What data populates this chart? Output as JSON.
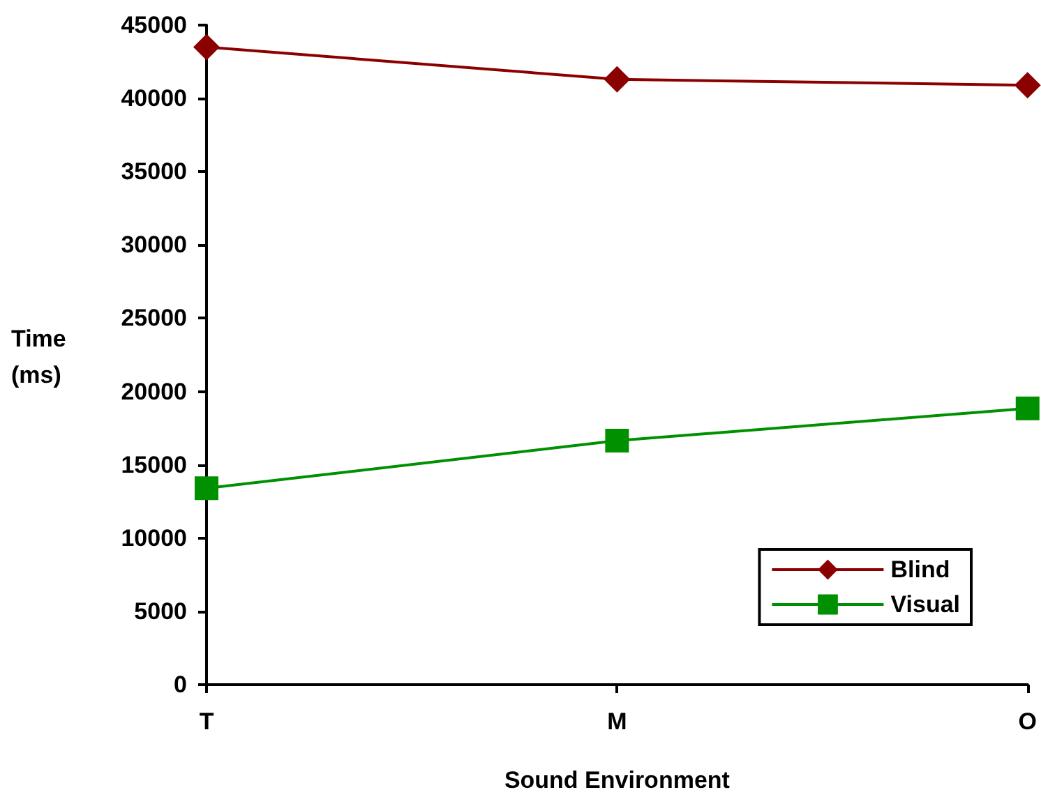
{
  "chart_data": {
    "type": "line",
    "xlabel": "Sound Environment",
    "ylabel": "Time (ms)",
    "categories": [
      "T",
      "M",
      "O"
    ],
    "series": [
      {
        "name": "Blind",
        "color": "#8b0000",
        "marker": "diamond",
        "values": [
          43500,
          41300,
          40900
        ]
      },
      {
        "name": "Visual",
        "color": "#009000",
        "marker": "square",
        "values": [
          13400,
          16650,
          18850
        ]
      }
    ],
    "ylim": [
      0,
      45000
    ],
    "yticks": [
      0,
      5000,
      10000,
      15000,
      20000,
      25000,
      30000,
      35000,
      40000,
      45000
    ],
    "grid": false,
    "legend": "bottom right",
    "line_style": "solid"
  }
}
